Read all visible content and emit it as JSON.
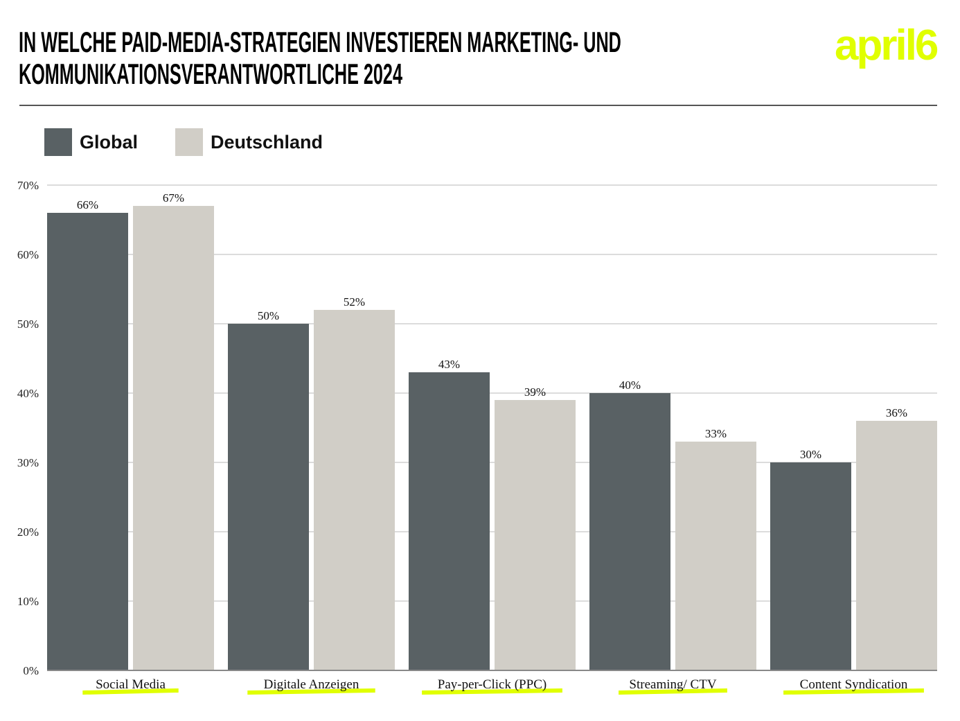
{
  "title": {
    "line1": "IN WELCHE PAID-MEDIA-STRATEGIEN INVESTIEREN MARKETING- UND",
    "line2": "KOMMUNIKATIONSVERANTWORTLICHE 2024"
  },
  "logo": {
    "text": "april6",
    "color": "#e0ff00"
  },
  "colors": {
    "global": "#596164",
    "deutschland": "#d1cec7",
    "highlight": "#e0ff00",
    "grid": "#c8c8c8"
  },
  "chart_data": {
    "type": "bar",
    "title": "IN WELCHE PAID-MEDIA-STRATEGIEN INVESTIEREN MARKETING- UND KOMMUNIKATIONSVERANTWORTLICHE 2024",
    "categories": [
      "Social Media",
      "Digitale Anzeigen",
      "Pay-per-Click (PPC)",
      "Streaming/ CTV",
      "Content Syndication"
    ],
    "series": [
      {
        "name": "Global",
        "values": [
          66,
          50,
          43,
          40,
          30
        ],
        "labels": [
          "66%",
          "50%",
          "43%",
          "40%",
          "30%"
        ]
      },
      {
        "name": "Deutschland",
        "values": [
          67,
          52,
          39,
          33,
          36
        ],
        "labels": [
          "67%",
          "52%",
          "39%",
          "33%",
          "36%"
        ]
      }
    ],
    "yticks": [
      "0%",
      "10%",
      "20%",
      "30%",
      "40%",
      "50%",
      "60%",
      "70%"
    ],
    "ylim": [
      0,
      70
    ],
    "grid": true,
    "legend": "top-left",
    "xlabel": "",
    "ylabel": ""
  }
}
